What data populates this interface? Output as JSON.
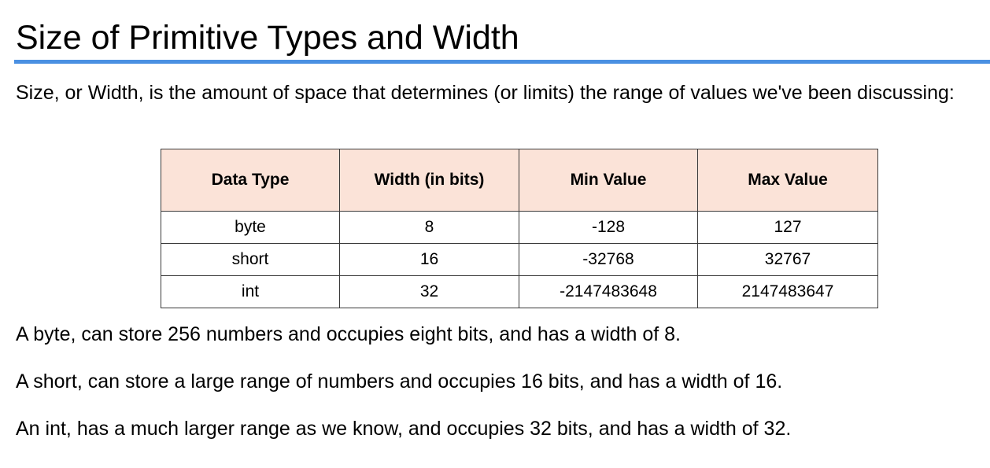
{
  "title": "Size of Primitive Types and Width",
  "intro": "Size, or Width, is the amount of space that determines (or limits) the range of values we've been discussing:",
  "table": {
    "headers": [
      "Data Type",
      "Width (in bits)",
      "Min Value",
      "Max Value"
    ],
    "rows": [
      [
        "byte",
        "8",
        "-128",
        "127"
      ],
      [
        "short",
        "16",
        "-32768",
        "32767"
      ],
      [
        "int",
        "32",
        "-2147483648",
        "2147483647"
      ]
    ]
  },
  "notes": [
    "A byte, can store 256 numbers and occupies eight bits, and has a width of 8.",
    "A short, can store a large range of numbers and occupies 16 bits, and has a width of 16.",
    "An int, has a much larger range as we know, and occupies 32 bits, and has a width of 32."
  ],
  "colors": {
    "title_rule": "#4a90e2",
    "header_fill": "#fbe3d8",
    "border": "#3a3a3a"
  }
}
